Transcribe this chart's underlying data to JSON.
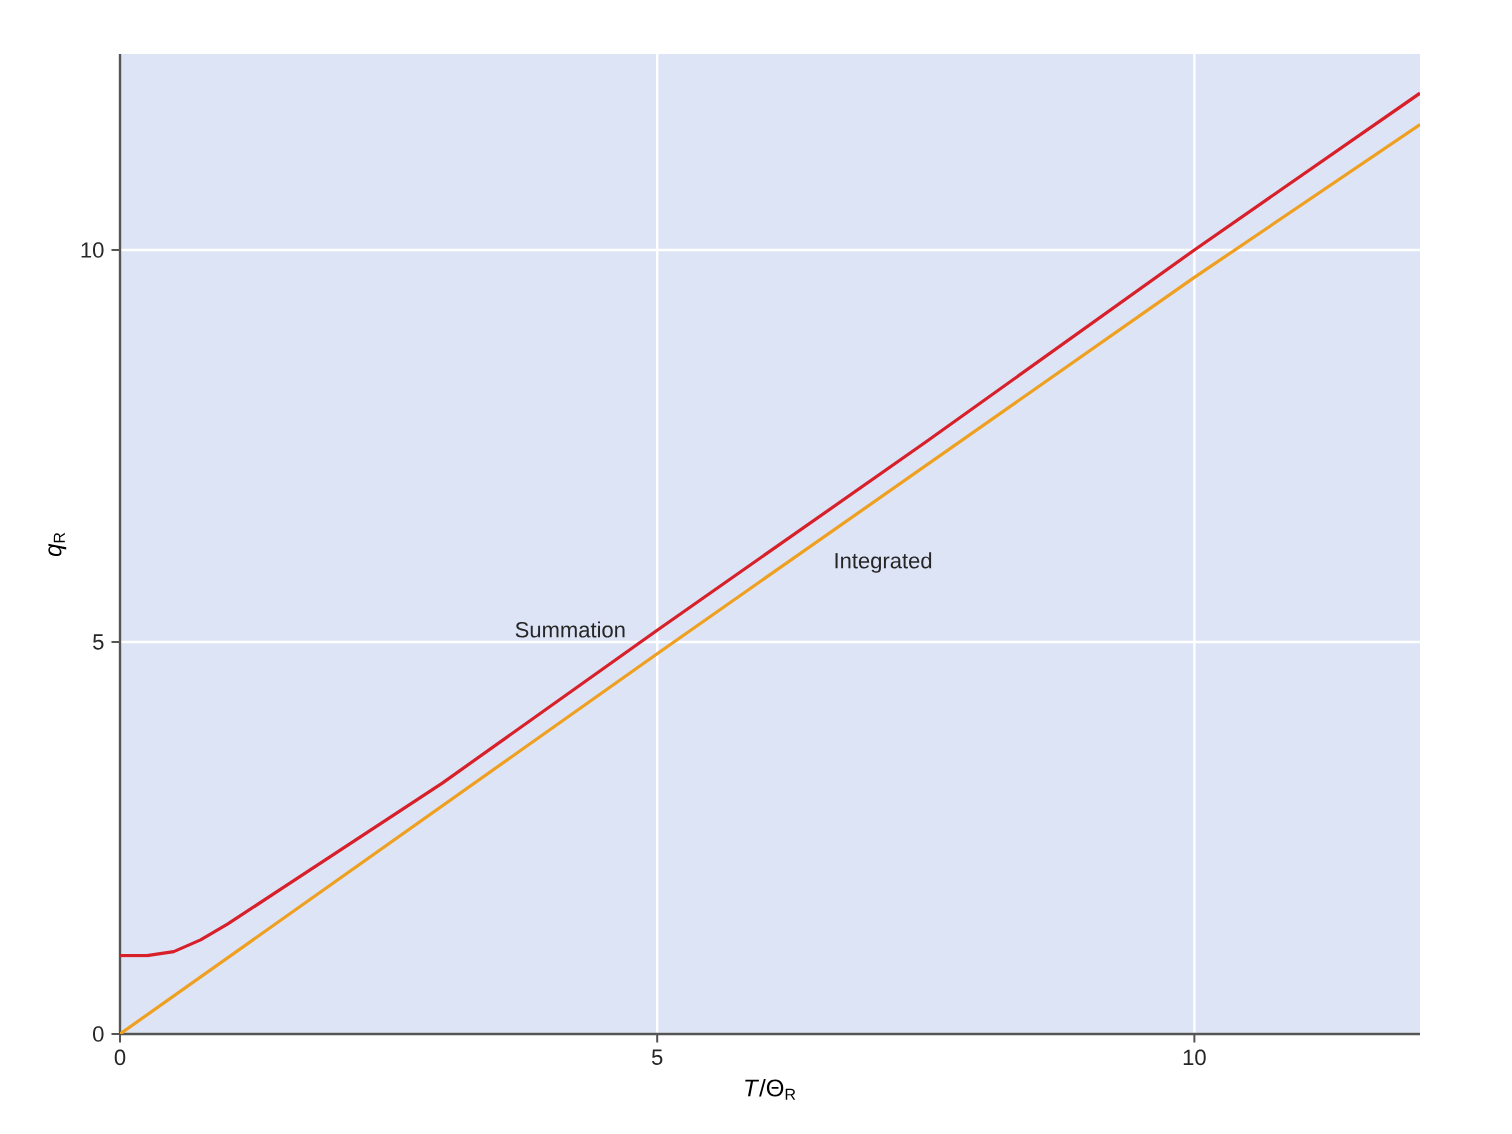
{
  "chart_data": {
    "type": "line",
    "xlabel": "*T*/Θ$_{R}$",
    "ylabel": "*q*$_{R}$",
    "xlim": [
      0,
      12.1
    ],
    "ylim": [
      0,
      12.5
    ],
    "xticks": [
      0,
      5,
      10
    ],
    "yticks": [
      0,
      5,
      10
    ],
    "grid": true,
    "legend": false,
    "marker": "none",
    "line_style": "solid",
    "series": [
      {
        "name": "Summation",
        "color": "#d8202a",
        "x": [
          0,
          0.25,
          0.5,
          0.75,
          1,
          1.5,
          2,
          3,
          5,
          7.5,
          10,
          12.1
        ],
        "values": [
          1,
          1.0,
          1.05,
          1.2,
          1.4,
          1.85,
          2.3,
          3.2,
          5.15,
          7.55,
          10,
          12.0
        ]
      },
      {
        "name": "Integrated",
        "color": "#f0a020",
        "x": [
          0,
          5,
          10,
          12.1
        ],
        "values": [
          0,
          4.85,
          9.65,
          11.6
        ]
      }
    ]
  }
}
